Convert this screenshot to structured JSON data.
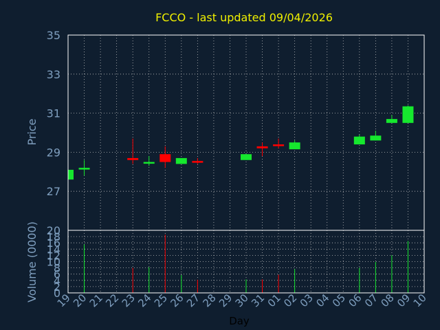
{
  "chart_data": {
    "type": "candlestick",
    "title": "FCCO - last updated 09/04/2026",
    "xlabel": "Day",
    "price_panel": {
      "ylabel": "Price",
      "ylim": [
        25,
        35
      ],
      "yticks": [
        "35",
        "33",
        "31",
        "29",
        "27"
      ],
      "ytick_values": [
        35,
        33,
        31,
        29,
        27
      ]
    },
    "volume_panel": {
      "ylabel": "Volume (0000)",
      "ylim": [
        0,
        20
      ],
      "yticks": [
        "20",
        "18",
        "16",
        "14",
        "12",
        "10",
        "8",
        "6",
        "4",
        "2",
        "0"
      ],
      "ytick_values": [
        20,
        18,
        16,
        14,
        12,
        10,
        8,
        6,
        4,
        2,
        0
      ]
    },
    "x_labels": [
      "19",
      "20",
      "21",
      "22",
      "23",
      "24",
      "25",
      "26",
      "27",
      "28",
      "29",
      "30",
      "31",
      "01",
      "02",
      "03",
      "04",
      "05",
      "06",
      "07",
      "08",
      "09",
      "10"
    ],
    "candles": [
      {
        "x": "19",
        "open": 27.6,
        "high": 28.1,
        "low": 27.6,
        "close": 28.1
      },
      {
        "x": "20",
        "open": 28.2,
        "high": 28.6,
        "low": 27.8,
        "close": 28.2
      },
      {
        "x": "23",
        "open": 28.7,
        "high": 29.7,
        "low": 28.4,
        "close": 28.6
      },
      {
        "x": "24",
        "open": 28.5,
        "high": 28.8,
        "low": 28.3,
        "close": 28.5
      },
      {
        "x": "25",
        "open": 28.9,
        "high": 29.3,
        "low": 28.2,
        "close": 28.5
      },
      {
        "x": "26",
        "open": 28.4,
        "high": 28.7,
        "low": 28.4,
        "close": 28.7
      },
      {
        "x": "27",
        "open": 28.55,
        "high": 28.7,
        "low": 28.4,
        "close": 28.5
      },
      {
        "x": "30",
        "open": 28.6,
        "high": 28.9,
        "low": 28.6,
        "close": 28.9
      },
      {
        "x": "31",
        "open": 29.3,
        "high": 29.5,
        "low": 28.8,
        "close": 29.2
      },
      {
        "x": "01",
        "open": 29.4,
        "high": 29.7,
        "low": 29.2,
        "close": 29.35
      },
      {
        "x": "02",
        "open": 29.15,
        "high": 29.6,
        "low": 29.15,
        "close": 29.5
      },
      {
        "x": "06",
        "open": 29.4,
        "high": 29.9,
        "low": 29.4,
        "close": 29.8
      },
      {
        "x": "07",
        "open": 29.6,
        "high": 30.1,
        "low": 29.6,
        "close": 29.85
      },
      {
        "x": "08",
        "open": 30.5,
        "high": 30.9,
        "low": 30.5,
        "close": 30.7
      },
      {
        "x": "09",
        "open": 30.5,
        "high": 31.4,
        "low": 30.5,
        "close": 31.35
      }
    ],
    "volumes": [
      {
        "x": "20",
        "value": 15.5
      },
      {
        "x": "23",
        "value": 8.0
      },
      {
        "x": "24",
        "value": 8.2
      },
      {
        "x": "25",
        "value": 18.6
      },
      {
        "x": "26",
        "value": 5.7
      },
      {
        "x": "27",
        "value": 4.2
      },
      {
        "x": "30",
        "value": 4.3
      },
      {
        "x": "31",
        "value": 4.3
      },
      {
        "x": "01",
        "value": 5.8
      },
      {
        "x": "02",
        "value": 7.6
      },
      {
        "x": "06",
        "value": 8.0
      },
      {
        "x": "07",
        "value": 9.9
      },
      {
        "x": "08",
        "value": 12.0
      },
      {
        "x": "09",
        "value": 16.6
      }
    ],
    "colors": {
      "background": "#0f1e2f",
      "up": "#16e82e",
      "down": "#ff0000",
      "title": "#f0f000",
      "axis_text": "#7f9fbf",
      "grid": "#c0c0c0",
      "xlabel": "#000000"
    },
    "grid": true
  }
}
